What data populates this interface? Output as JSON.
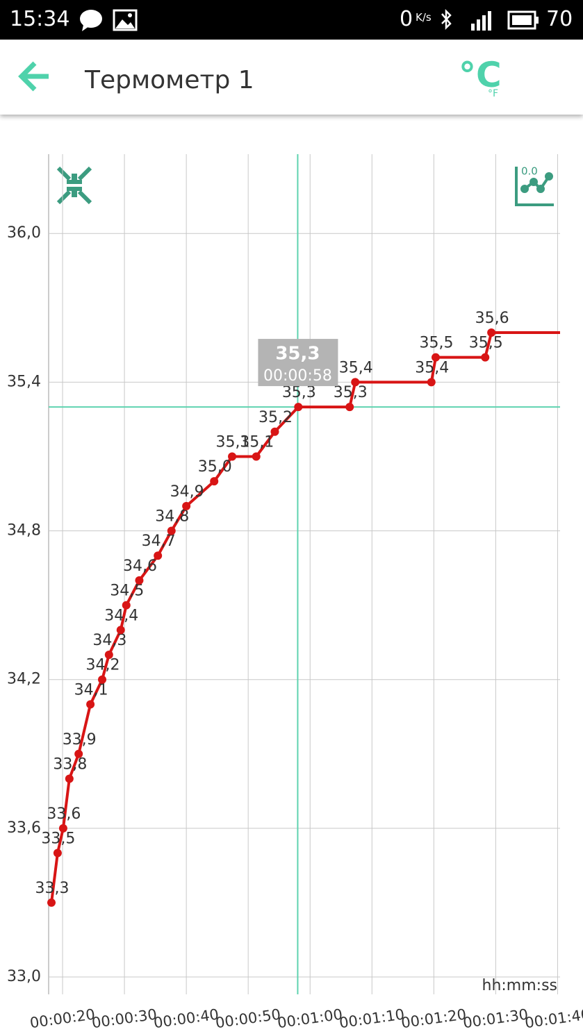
{
  "status_bar": {
    "time": "15:34",
    "net_speed": "0",
    "net_unit": "K/s",
    "battery": "70"
  },
  "app_bar": {
    "title": "Термометр 1",
    "unit_main": "°C",
    "unit_alt": "°F"
  },
  "chart_data": {
    "type": "line",
    "color": "#d81515",
    "x": [
      18.2,
      19.2,
      20.1,
      21.1,
      22.6,
      24.5,
      26.4,
      27.5,
      29.4,
      30.3,
      32.4,
      35.4,
      37.6,
      40.0,
      44.5,
      47.4,
      51.3,
      54.3,
      58.1,
      66.4,
      67.3,
      79.6,
      80.3,
      88.3,
      89.3
    ],
    "values": [
      33.3,
      33.5,
      33.6,
      33.8,
      33.9,
      34.1,
      34.2,
      34.3,
      34.4,
      34.5,
      34.6,
      34.7,
      34.8,
      34.9,
      35.0,
      35.1,
      35.1,
      35.2,
      35.3,
      35.3,
      35.4,
      35.4,
      35.5,
      35.5,
      35.6
    ],
    "value_labels": [
      "33,3",
      "33,5",
      "33,6",
      "33,8",
      "33,9",
      "34,1",
      "34,2",
      "34,3",
      "34,4",
      "34,5",
      "34,6",
      "34,7",
      "34,8",
      "34,9",
      "35,0",
      "35,1",
      "35,1",
      "35,2",
      "35,3",
      "35,3",
      "35,4",
      "35,4",
      "35,5",
      "35,5",
      "35,6"
    ],
    "xlim": [
      17.75,
      100.4
    ],
    "ylim": [
      32.93,
      36.32
    ],
    "xticks": [
      {
        "value": 20,
        "label": "00:00:20"
      },
      {
        "value": 30,
        "label": "00:00:30"
      },
      {
        "value": 40,
        "label": "00:00:40"
      },
      {
        "value": 50,
        "label": "00:00:50"
      },
      {
        "value": 60,
        "label": "00:01:00"
      },
      {
        "value": 70,
        "label": "00:01:10"
      },
      {
        "value": 80,
        "label": "00:01:20"
      },
      {
        "value": 90,
        "label": "00:01:30"
      },
      {
        "value": 100,
        "label": "00:01:40"
      }
    ],
    "yticks": [
      {
        "value": 33.0,
        "label": "33,0"
      },
      {
        "value": 33.6,
        "label": "33,6"
      },
      {
        "value": 34.2,
        "label": "34,2"
      },
      {
        "value": 34.8,
        "label": "34,8"
      },
      {
        "value": 35.4,
        "label": "35,4"
      },
      {
        "value": 36.0,
        "label": "36,0"
      }
    ],
    "x_label": "hh:mm:ss",
    "grid": true,
    "crosshair": {
      "x": 58,
      "y": 35.3,
      "value_label": "35,3",
      "x_label": "00:00:58",
      "color": "#5fd3b0"
    }
  }
}
